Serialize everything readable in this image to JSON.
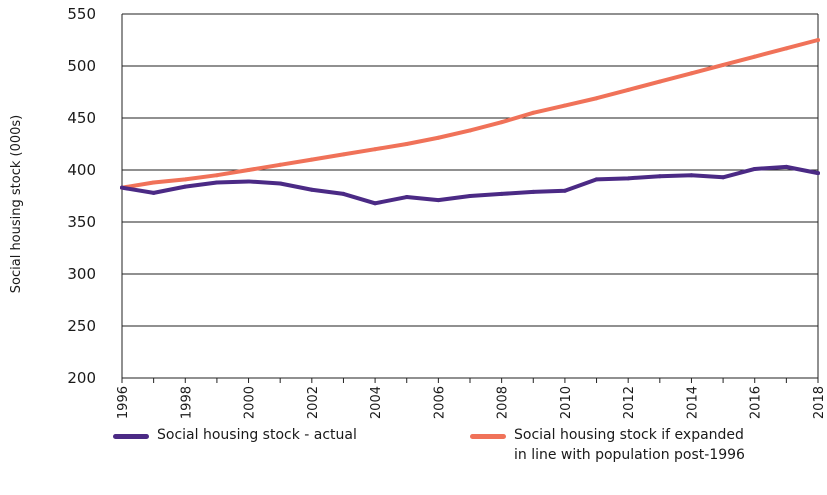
{
  "chart_data": {
    "type": "line",
    "title": "",
    "xlabel": "",
    "ylabel": "Social housing stock (000s)",
    "ylim": [
      200,
      550
    ],
    "yticks": [
      200,
      250,
      300,
      350,
      400,
      450,
      500,
      550
    ],
    "xticks": [
      "1996",
      "1998",
      "2000",
      "2002",
      "2004",
      "2006",
      "2008",
      "2010",
      "2012",
      "2014",
      "2016",
      "2018"
    ],
    "x": [
      1996,
      1997,
      1998,
      1999,
      2000,
      2001,
      2002,
      2003,
      2004,
      2005,
      2006,
      2007,
      2008,
      2009,
      2010,
      2011,
      2012,
      2013,
      2014,
      2015,
      2016,
      2017,
      2018
    ],
    "grid": "horizontal",
    "legend_position": "bottom",
    "series": [
      {
        "name": "Social housing stock - actual",
        "color": "#4b2a85",
        "values": [
          383,
          378,
          384,
          388,
          389,
          387,
          381,
          377,
          368,
          374,
          371,
          375,
          377,
          379,
          380,
          391,
          392,
          394,
          395,
          393,
          401,
          403,
          397
        ]
      },
      {
        "name": "Social housing stock if expanded in line with population post-1996",
        "name_lines": [
          "Social housing stock if expanded",
          "in line with population post-1996"
        ],
        "color": "#f07259",
        "values": [
          383,
          388,
          391,
          395,
          400,
          405,
          410,
          415,
          420,
          425,
          431,
          438,
          446,
          455,
          462,
          469,
          477,
          485,
          493,
          501,
          509,
          517,
          525
        ]
      }
    ]
  }
}
